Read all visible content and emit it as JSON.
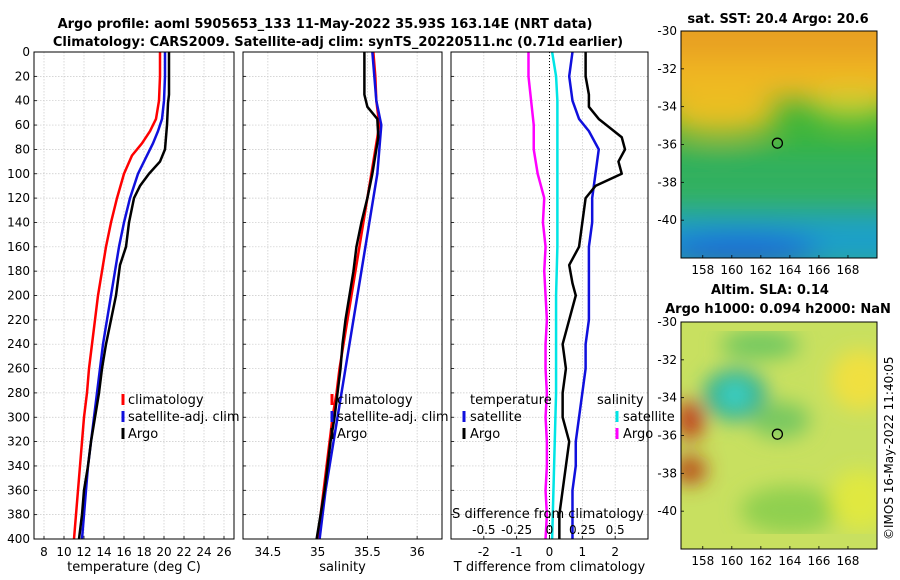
{
  "header": {
    "title_line1": "Argo profile: aoml 5905653_133 11-May-2022 35.93S 163.14E (NRT data)",
    "title_line2": "Climatology: CARS2009. Satellite-adj clim: synTS_20220511.nc (0.71d earlier)"
  },
  "colors": {
    "clim": "#ff0000",
    "sat": "#1010dd",
    "argo": "#000000",
    "cyan": "#00e5e5",
    "magenta": "#ff00ff"
  },
  "chart_data": [
    {
      "type": "line",
      "name": "temperature-profile",
      "xlabel": "temperature (deg C)",
      "xlim": [
        7,
        27
      ],
      "ylim": [
        0,
        400
      ],
      "xticks": [
        8,
        10,
        12,
        14,
        16,
        18,
        20,
        22,
        24,
        26
      ],
      "yticks": [
        0,
        20,
        40,
        60,
        80,
        100,
        120,
        140,
        160,
        180,
        200,
        220,
        240,
        260,
        280,
        300,
        320,
        340,
        360,
        380,
        400
      ],
      "legend": [
        "climatology",
        "satellite-adj. clim",
        "Argo"
      ],
      "series": [
        {
          "name": "climatology",
          "color": "#ff0000",
          "points": [
            [
              19.6,
              0
            ],
            [
              19.6,
              20
            ],
            [
              19.5,
              40
            ],
            [
              19.2,
              55
            ],
            [
              18.6,
              65
            ],
            [
              17.8,
              75
            ],
            [
              16.8,
              85
            ],
            [
              16.0,
              100
            ],
            [
              15.3,
              120
            ],
            [
              14.7,
              140
            ],
            [
              14.2,
              160
            ],
            [
              13.8,
              180
            ],
            [
              13.4,
              200
            ],
            [
              13.1,
              220
            ],
            [
              12.8,
              240
            ],
            [
              12.5,
              260
            ],
            [
              12.3,
              280
            ],
            [
              12.0,
              300
            ],
            [
              11.8,
              320
            ],
            [
              11.6,
              340
            ],
            [
              11.4,
              360
            ],
            [
              11.2,
              380
            ],
            [
              11.0,
              400
            ]
          ]
        },
        {
          "name": "satellite-adj. clim",
          "color": "#1010dd",
          "points": [
            [
              20.1,
              0
            ],
            [
              20.1,
              20
            ],
            [
              20.0,
              40
            ],
            [
              19.8,
              55
            ],
            [
              19.4,
              65
            ],
            [
              18.9,
              75
            ],
            [
              18.3,
              85
            ],
            [
              17.4,
              100
            ],
            [
              16.6,
              120
            ],
            [
              16.0,
              140
            ],
            [
              15.5,
              160
            ],
            [
              15.1,
              180
            ],
            [
              14.7,
              200
            ],
            [
              14.3,
              220
            ],
            [
              13.9,
              240
            ],
            [
              13.6,
              260
            ],
            [
              13.3,
              280
            ],
            [
              13.0,
              300
            ],
            [
              12.7,
              320
            ],
            [
              12.4,
              340
            ],
            [
              12.2,
              360
            ],
            [
              12.0,
              380
            ],
            [
              11.8,
              400
            ]
          ]
        },
        {
          "name": "Argo",
          "color": "#000000",
          "points": [
            [
              20.5,
              0
            ],
            [
              20.5,
              20
            ],
            [
              20.5,
              35
            ],
            [
              20.4,
              42
            ],
            [
              20.3,
              60
            ],
            [
              20.1,
              80
            ],
            [
              19.6,
              90
            ],
            [
              18.5,
              100
            ],
            [
              17.6,
              110
            ],
            [
              17.0,
              120
            ],
            [
              16.5,
              140
            ],
            [
              16.2,
              160
            ],
            [
              15.6,
              175
            ],
            [
              15.2,
              200
            ],
            [
              14.7,
              220
            ],
            [
              14.2,
              240
            ],
            [
              13.8,
              260
            ],
            [
              13.5,
              280
            ],
            [
              13.1,
              300
            ],
            [
              12.7,
              320
            ],
            [
              12.4,
              340
            ],
            [
              12.0,
              360
            ],
            [
              11.8,
              380
            ],
            [
              11.5,
              400
            ]
          ]
        }
      ]
    },
    {
      "type": "line",
      "name": "salinity-profile",
      "xlabel": "salinity",
      "xlim": [
        34.25,
        36.25
      ],
      "ylim": [
        0,
        400
      ],
      "xticks": [
        34.5,
        35,
        35.5,
        36
      ],
      "legend": [
        "climatology",
        "satellite-adj. clim",
        "Argo"
      ],
      "series": [
        {
          "name": "climatology",
          "color": "#ff0000",
          "points": [
            [
              35.56,
              0
            ],
            [
              35.58,
              20
            ],
            [
              35.59,
              40
            ],
            [
              35.62,
              60
            ],
            [
              35.58,
              80
            ],
            [
              35.54,
              100
            ],
            [
              35.5,
              120
            ],
            [
              35.46,
              140
            ],
            [
              35.42,
              160
            ],
            [
              35.38,
              180
            ],
            [
              35.34,
              200
            ],
            [
              35.3,
              220
            ],
            [
              35.26,
              240
            ],
            [
              35.22,
              260
            ],
            [
              35.19,
              280
            ],
            [
              35.15,
              300
            ],
            [
              35.12,
              320
            ],
            [
              35.09,
              340
            ],
            [
              35.06,
              360
            ],
            [
              35.03,
              380
            ],
            [
              35.0,
              400
            ]
          ]
        },
        {
          "name": "satellite-adj. clim",
          "color": "#1010dd",
          "points": [
            [
              35.55,
              0
            ],
            [
              35.57,
              20
            ],
            [
              35.59,
              40
            ],
            [
              35.64,
              60
            ],
            [
              35.62,
              80
            ],
            [
              35.6,
              100
            ],
            [
              35.56,
              120
            ],
            [
              35.52,
              140
            ],
            [
              35.48,
              160
            ],
            [
              35.44,
              180
            ],
            [
              35.4,
              200
            ],
            [
              35.36,
              220
            ],
            [
              35.32,
              240
            ],
            [
              35.28,
              260
            ],
            [
              35.24,
              280
            ],
            [
              35.2,
              300
            ],
            [
              35.16,
              320
            ],
            [
              35.12,
              340
            ],
            [
              35.08,
              360
            ],
            [
              35.05,
              380
            ],
            [
              35.02,
              400
            ]
          ]
        },
        {
          "name": "Argo",
          "color": "#000000",
          "points": [
            [
              35.47,
              0
            ],
            [
              35.47,
              20
            ],
            [
              35.47,
              35
            ],
            [
              35.5,
              45
            ],
            [
              35.6,
              55
            ],
            [
              35.61,
              70
            ],
            [
              35.58,
              85
            ],
            [
              35.55,
              100
            ],
            [
              35.5,
              120
            ],
            [
              35.44,
              140
            ],
            [
              35.39,
              160
            ],
            [
              35.36,
              180
            ],
            [
              35.32,
              200
            ],
            [
              35.28,
              220
            ],
            [
              35.25,
              240
            ],
            [
              35.23,
              260
            ],
            [
              35.2,
              280
            ],
            [
              35.17,
              300
            ],
            [
              35.13,
              320
            ],
            [
              35.1,
              340
            ],
            [
              35.07,
              360
            ],
            [
              35.03,
              380
            ],
            [
              34.99,
              400
            ]
          ]
        }
      ]
    },
    {
      "type": "line",
      "name": "difference-profile",
      "xlabel": "T difference from climatology",
      "xlabel_top": "S difference from climatology",
      "xlim": [
        -3,
        3
      ],
      "ylim": [
        0,
        400
      ],
      "xticks": [
        -2,
        -1,
        0,
        1,
        2
      ],
      "s_xticks": [
        -0.5,
        -0.25,
        0,
        0.25,
        0.5
      ],
      "legend_temperature_title": "temperature",
      "legend_salinity_title": "salinity",
      "legend_labels": [
        "satellite",
        "Argo",
        "satellite",
        "Argo"
      ],
      "series": [
        {
          "name": "T satellite",
          "color": "#1010dd",
          "points": [
            [
              0.7,
              0
            ],
            [
              0.6,
              20
            ],
            [
              0.7,
              40
            ],
            [
              0.9,
              55
            ],
            [
              1.2,
              65
            ],
            [
              1.5,
              80
            ],
            [
              1.4,
              100
            ],
            [
              1.3,
              120
            ],
            [
              1.3,
              140
            ],
            [
              1.2,
              160
            ],
            [
              1.2,
              180
            ],
            [
              1.2,
              200
            ],
            [
              1.2,
              220
            ],
            [
              1.1,
              240
            ],
            [
              1.1,
              260
            ],
            [
              1.0,
              280
            ],
            [
              0.9,
              300
            ],
            [
              0.8,
              320
            ],
            [
              0.8,
              340
            ],
            [
              0.7,
              360
            ],
            [
              0.7,
              380
            ],
            [
              0.7,
              400
            ]
          ]
        },
        {
          "name": "T Argo",
          "color": "#000000",
          "points": [
            [
              1.1,
              0
            ],
            [
              1.1,
              20
            ],
            [
              1.2,
              35
            ],
            [
              1.2,
              45
            ],
            [
              1.5,
              55
            ],
            [
              2.2,
              70
            ],
            [
              2.3,
              80
            ],
            [
              2.1,
              90
            ],
            [
              2.2,
              100
            ],
            [
              1.4,
              110
            ],
            [
              1.1,
              120
            ],
            [
              1.0,
              140
            ],
            [
              0.9,
              160
            ],
            [
              0.6,
              175
            ],
            [
              0.7,
              190
            ],
            [
              0.8,
              200
            ],
            [
              0.6,
              220
            ],
            [
              0.4,
              240
            ],
            [
              0.5,
              260
            ],
            [
              0.4,
              280
            ],
            [
              0.4,
              300
            ],
            [
              0.6,
              320
            ],
            [
              0.5,
              340
            ],
            [
              0.4,
              360
            ],
            [
              0.3,
              380
            ],
            [
              0.3,
              400
            ]
          ]
        },
        {
          "name": "S satellite",
          "color": "#00e5e5",
          "points": [
            [
              0.02,
              0
            ],
            [
              0.05,
              20
            ],
            [
              0.06,
              40
            ],
            [
              0.06,
              80
            ],
            [
              0.06,
              120
            ],
            [
              0.06,
              160
            ],
            [
              0.05,
              200
            ],
            [
              0.05,
              240
            ],
            [
              0.05,
              280
            ],
            [
              0.04,
              320
            ],
            [
              0.03,
              360
            ],
            [
              0.02,
              400
            ]
          ]
        },
        {
          "name": "S Argo",
          "color": "#ff00ff",
          "points": [
            [
              -0.16,
              0
            ],
            [
              -0.16,
              20
            ],
            [
              -0.14,
              40
            ],
            [
              -0.12,
              60
            ],
            [
              -0.12,
              80
            ],
            [
              -0.09,
              100
            ],
            [
              -0.04,
              120
            ],
            [
              -0.05,
              140
            ],
            [
              -0.03,
              160
            ],
            [
              -0.04,
              180
            ],
            [
              -0.03,
              200
            ],
            [
              -0.02,
              220
            ],
            [
              -0.03,
              240
            ],
            [
              -0.03,
              260
            ],
            [
              -0.02,
              280
            ],
            [
              -0.03,
              300
            ],
            [
              -0.02,
              320
            ],
            [
              -0.02,
              340
            ],
            [
              -0.03,
              360
            ],
            [
              -0.02,
              380
            ],
            [
              -0.03,
              400
            ]
          ]
        }
      ]
    },
    {
      "type": "heatmap",
      "name": "sst-map",
      "title": "sat. SST: 20.4 Argo: 20.6",
      "xlim": [
        156.5,
        170
      ],
      "ylim": [
        -42,
        -30
      ],
      "xticks": [
        158,
        160,
        162,
        164,
        166,
        168
      ],
      "yticks": [
        -30,
        -32,
        -34,
        -36,
        -38,
        -40
      ],
      "marker": [
        163.14,
        -35.93
      ]
    },
    {
      "type": "heatmap",
      "name": "sla-map",
      "title_line1": "Altim. SLA: 0.14",
      "title_line2": "Argo h1000: 0.094 h2000: NaN",
      "xlim": [
        156.5,
        170
      ],
      "ylim": [
        -42,
        -30
      ],
      "xticks": [
        158,
        160,
        162,
        164,
        166,
        168
      ],
      "yticks": [
        -30,
        -32,
        -34,
        -36,
        -38,
        -40
      ],
      "marker": [
        163.14,
        -35.93
      ]
    }
  ],
  "side_stamp": "©IMOS 16-May-2022 11:40:05"
}
